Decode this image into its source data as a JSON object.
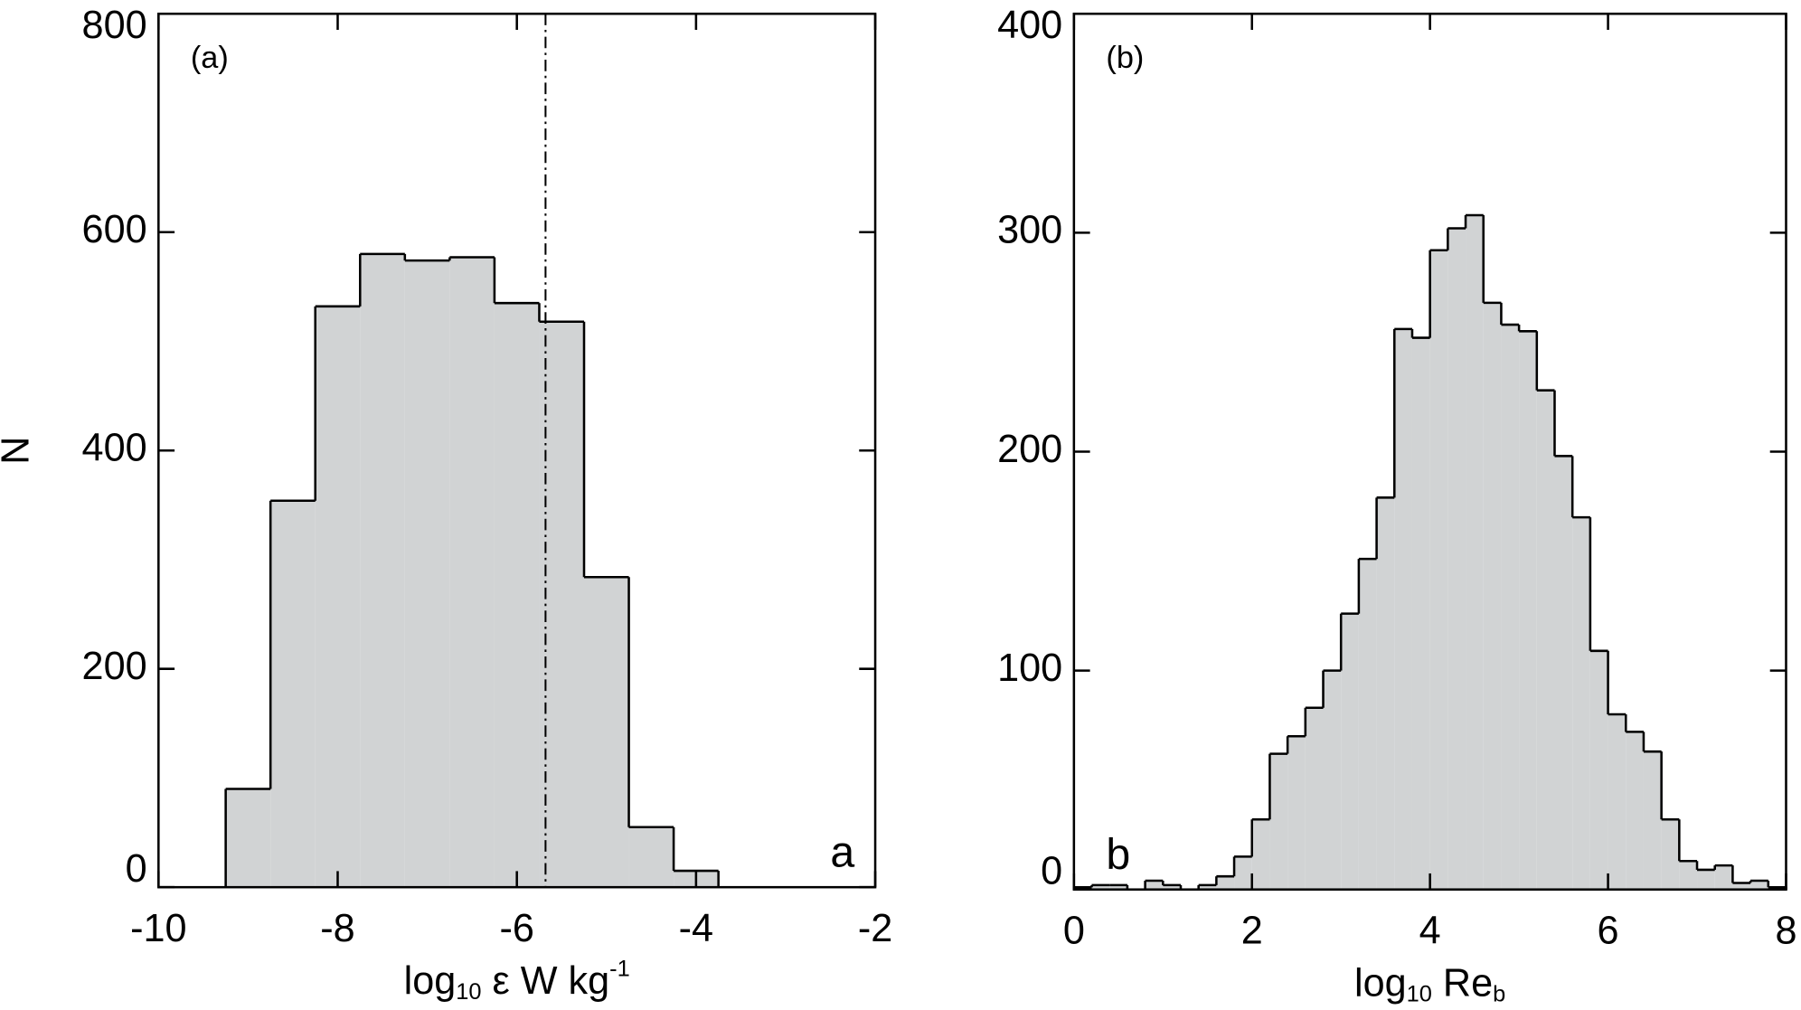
{
  "chart_data": [
    {
      "type": "histogram",
      "panel_label": "(a)",
      "corner_label": "a",
      "ylabel": "N",
      "xlabel": [
        {
          "text": "log"
        },
        {
          "text": "10",
          "sub": true
        },
        {
          "text": " ε   W kg"
        },
        {
          "text": "-1",
          "sup": true
        }
      ],
      "color": "#d1d3d4",
      "bins": [
        -9.25,
        -8.75,
        -8.25,
        -7.75,
        -7.25,
        -6.75,
        -6.25,
        -5.75,
        -5.25,
        -4.75,
        -4.25,
        -3.75
      ],
      "counts": [
        90,
        354,
        532,
        580,
        574,
        577,
        535,
        518,
        284,
        55,
        15
      ],
      "vline": -5.68,
      "xlim": [
        -10,
        -2
      ],
      "ylim": [
        0,
        800
      ],
      "xticks": [
        -10,
        -8,
        -6,
        -4,
        -2
      ],
      "yticks": [
        0,
        200,
        400,
        600,
        800
      ]
    },
    {
      "type": "histogram",
      "panel_label": "(b)",
      "corner_label": "b",
      "xlabel": [
        {
          "text": "log"
        },
        {
          "text": "10",
          "sub": true
        },
        {
          "text": " Re"
        },
        {
          "text": "b",
          "sub": true
        }
      ],
      "color": "#d1d3d4",
      "bins": [
        0,
        0.2,
        0.4,
        0.6,
        0.8,
        1.0,
        1.2,
        1.4,
        1.6,
        1.8,
        2.0,
        2.2,
        2.4,
        2.6,
        2.8,
        3.0,
        3.2,
        3.4,
        3.6,
        3.8,
        4.0,
        4.2,
        4.4,
        4.6,
        4.8,
        5.0,
        5.2,
        5.4,
        5.6,
        5.8,
        6.0,
        6.2,
        6.4,
        6.6,
        6.8,
        7.0,
        7.2,
        7.4,
        7.6,
        7.8,
        8.0
      ],
      "counts": [
        1,
        2,
        2,
        0,
        4,
        2,
        0,
        2,
        6,
        15,
        32,
        62,
        70,
        83,
        100,
        126,
        151,
        179,
        256,
        252,
        292,
        302,
        308,
        268,
        258,
        255,
        228,
        198,
        170,
        109,
        80,
        72,
        63,
        32,
        13,
        9,
        11,
        3,
        4,
        1
      ],
      "xlim": [
        0,
        8
      ],
      "ylim": [
        0,
        400
      ],
      "xticks": [
        0,
        2,
        4,
        6,
        8
      ],
      "yticks": [
        0,
        100,
        200,
        300,
        400
      ]
    }
  ]
}
